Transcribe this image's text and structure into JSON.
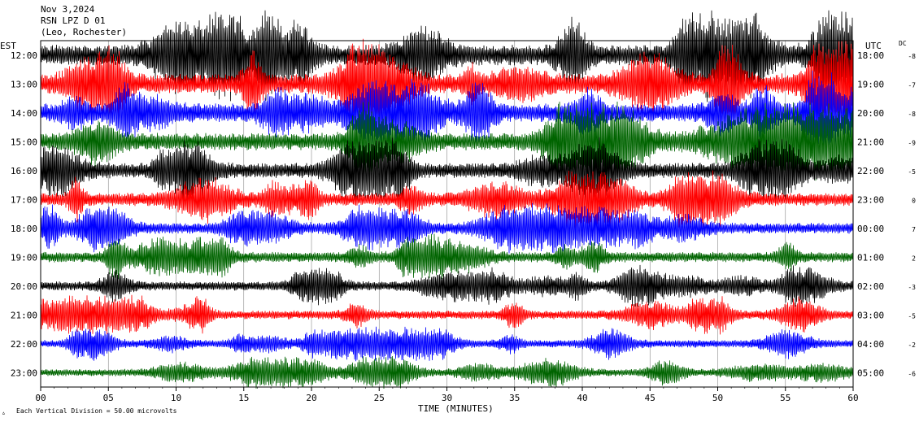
{
  "header": {
    "date": "Nov 3,2024",
    "channel": "RSN LPZ D 01",
    "station_note": "(Leo, Rochester)"
  },
  "chart_data": {
    "type": "helicorder",
    "xlabel": "TIME (MINUTES)",
    "xlim": [
      0,
      60
    ],
    "x_ticks": [
      "00",
      "05",
      "10",
      "15",
      "20",
      "25",
      "30",
      "35",
      "40",
      "45",
      "50",
      "55",
      "60"
    ],
    "left_axis_title": "EST",
    "right_axis_title": "UTC",
    "dc_title": "DC",
    "scale_note": "Each Vertical Division = 50.00 microvolts",
    "trace_colors": [
      "#000000",
      "#ff0000",
      "#0000ff",
      "#006400"
    ],
    "rows": [
      {
        "est": "12:00",
        "utc": "18:00",
        "dc": "-8",
        "amplitude": 1.9
      },
      {
        "est": "13:00",
        "utc": "19:00",
        "dc": "-7",
        "amplitude": 1.8
      },
      {
        "est": "14:00",
        "utc": "20:00",
        "dc": "-8",
        "amplitude": 1.7
      },
      {
        "est": "15:00",
        "utc": "21:00",
        "dc": "-9",
        "amplitude": 1.6
      },
      {
        "est": "16:00",
        "utc": "22:00",
        "dc": "-5",
        "amplitude": 1.4
      },
      {
        "est": "17:00",
        "utc": "23:00",
        "dc": "0",
        "amplitude": 1.2
      },
      {
        "est": "18:00",
        "utc": "00:00",
        "dc": "7",
        "amplitude": 1.0
      },
      {
        "est": "19:00",
        "utc": "01:00",
        "dc": "2",
        "amplitude": 0.95
      },
      {
        "est": "20:00",
        "utc": "02:00",
        "dc": "-3",
        "amplitude": 0.85
      },
      {
        "est": "21:00",
        "utc": "03:00",
        "dc": "-5",
        "amplitude": 0.8
      },
      {
        "est": "22:00",
        "utc": "04:00",
        "dc": "-2",
        "amplitude": 0.7
      },
      {
        "est": "23:00",
        "utc": "05:00",
        "dc": "-6",
        "amplitude": 0.65
      }
    ]
  }
}
